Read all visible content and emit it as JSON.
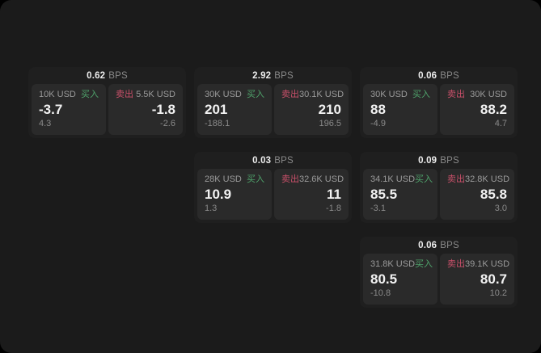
{
  "colors": {
    "background": "#1b1b1b",
    "card": "#1f1f1f",
    "panel": "#2a2a2a",
    "buy": "#4fa36b",
    "sell": "#c9506a"
  },
  "labels": {
    "buy": "买入",
    "sell": "卖出",
    "bps_unit": "BPS"
  },
  "cards": [
    {
      "bps": "0.62",
      "col": 1,
      "row": 1,
      "buy": {
        "amount": "10K USD",
        "price": "-3.7",
        "delta": "4.3"
      },
      "sell": {
        "amount": "5.5K USD",
        "price": "-1.8",
        "delta": "-2.6"
      }
    },
    {
      "bps": "2.92",
      "col": 2,
      "row": 1,
      "buy": {
        "amount": "30K USD",
        "price": "201",
        "delta": "-188.1"
      },
      "sell": {
        "amount": "30.1K USD",
        "price": "210",
        "delta": "196.5"
      }
    },
    {
      "bps": "0.06",
      "col": 3,
      "row": 1,
      "buy": {
        "amount": "30K USD",
        "price": "88",
        "delta": "-4.9"
      },
      "sell": {
        "amount": "30K USD",
        "price": "88.2",
        "delta": "4.7"
      }
    },
    {
      "bps": "0.03",
      "col": 2,
      "row": 2,
      "buy": {
        "amount": "28K USD",
        "price": "10.9",
        "delta": "1.3"
      },
      "sell": {
        "amount": "32.6K USD",
        "price": "11",
        "delta": "-1.8"
      }
    },
    {
      "bps": "0.09",
      "col": 3,
      "row": 2,
      "buy": {
        "amount": "34.1K USD",
        "price": "85.5",
        "delta": "-3.1"
      },
      "sell": {
        "amount": "32.8K USD",
        "price": "85.8",
        "delta": "3.0"
      }
    },
    {
      "bps": "0.06",
      "col": 3,
      "row": 3,
      "buy": {
        "amount": "31.8K USD",
        "price": "80.5",
        "delta": "-10.8"
      },
      "sell": {
        "amount": "39.1K USD",
        "price": "80.7",
        "delta": "10.2"
      }
    }
  ]
}
